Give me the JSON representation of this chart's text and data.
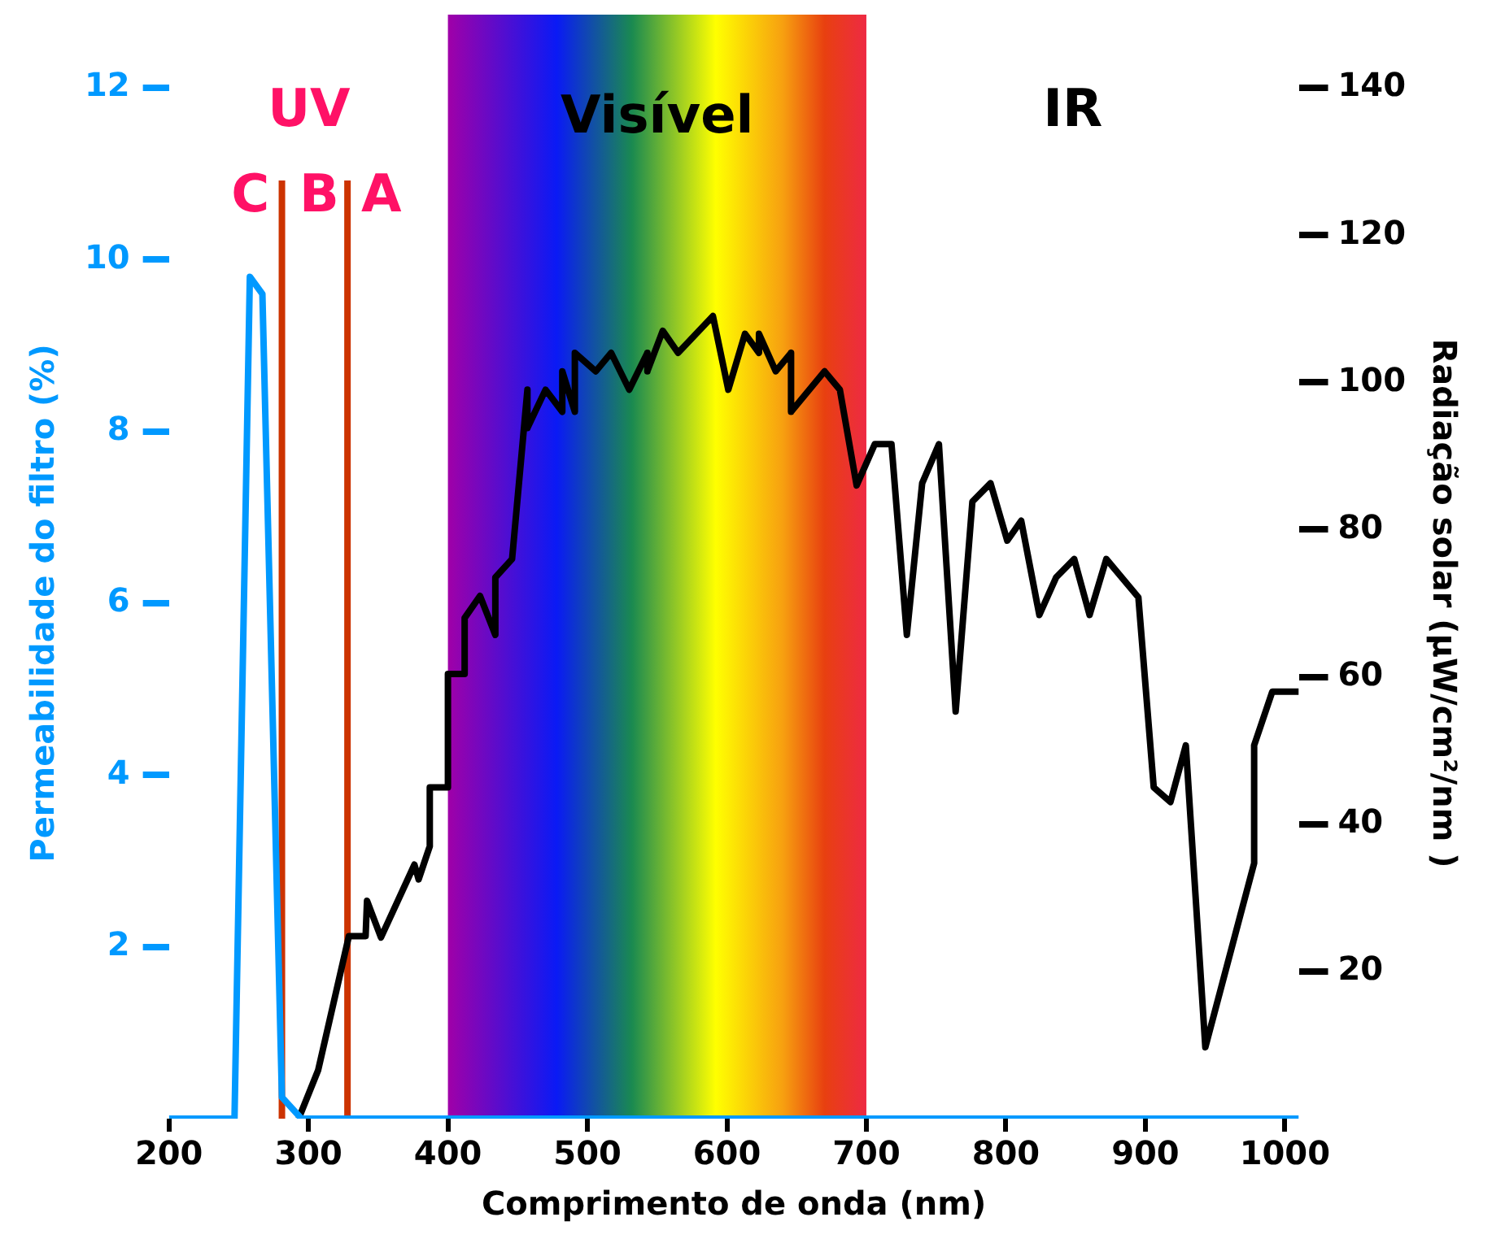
{
  "chart_data": {
    "type": "line",
    "xlabel": "Comprimento de onda (nm)",
    "ylabel": "Permeabilidade do filtro (%)",
    "y2label": "Radiação solar (μW/cm²/nm )",
    "xlim": [
      200,
      1010
    ],
    "xticks": [
      200,
      300,
      400,
      500,
      600,
      700,
      800,
      900,
      1000
    ],
    "ylim": [
      0,
      12
    ],
    "yticks": [
      2,
      4,
      6,
      8,
      10,
      12
    ],
    "y2lim": [
      0,
      140
    ],
    "y2ticks": [
      20,
      40,
      60,
      80,
      100,
      120,
      140
    ],
    "series": [
      {
        "color": "#0099ff",
        "x": [
          200,
          247,
          258,
          267,
          281,
          295,
          1010
        ],
        "values": [
          0,
          0,
          9.8,
          9.6,
          0.25,
          0,
          0
        ]
      },
      {
        "color": "#000000",
        "axis": "y2",
        "x": [
          293,
          307,
          329,
          341,
          342,
          352,
          376,
          379,
          387,
          387,
          400,
          400,
          412,
          412,
          423,
          434,
          434,
          446,
          457,
          457,
          470,
          482,
          482,
          491,
          491,
          506,
          517,
          530,
          543,
          543,
          554,
          565,
          590,
          601,
          613,
          623,
          623,
          635,
          646,
          646,
          670,
          681,
          693,
          706,
          718,
          729,
          740,
          752,
          764,
          776,
          789,
          801,
          811,
          824,
          836,
          849,
          860,
          872,
          895,
          906,
          918,
          929,
          943,
          978,
          978,
          991,
          1010
        ],
        "values": [
          0,
          6.6,
          24.8,
          24.8,
          29.6,
          24.6,
          34.5,
          32.5,
          37,
          45,
          45,
          60.4,
          60.4,
          68,
          71,
          65.7,
          73.5,
          76,
          99,
          93.8,
          99,
          96,
          101.5,
          96,
          104,
          101.5,
          104,
          99,
          104,
          101.5,
          107,
          104,
          109,
          99,
          106.6,
          104,
          106.6,
          101.5,
          104,
          96,
          101.5,
          99,
          86,
          91.6,
          91.6,
          65.7,
          86.3,
          91.6,
          55.3,
          83.8,
          86.3,
          78.5,
          81.2,
          68.4,
          73.5,
          76,
          68.4,
          76,
          70.8,
          45,
          43,
          50.7,
          9.7,
          34.7,
          50.7,
          58,
          58
        ]
      }
    ],
    "ref_lines": [
      {
        "axis": "x",
        "value": 281,
        "color": "#cc3300"
      },
      {
        "axis": "x",
        "value": 328,
        "color": "#cc3300"
      }
    ],
    "bands": [
      {
        "axis": "x",
        "from": 400,
        "to": 700,
        "label": "Visível"
      }
    ],
    "annotations": [
      "UV",
      "C",
      "B",
      "A",
      "IR"
    ],
    "grid": false,
    "legend": false
  }
}
